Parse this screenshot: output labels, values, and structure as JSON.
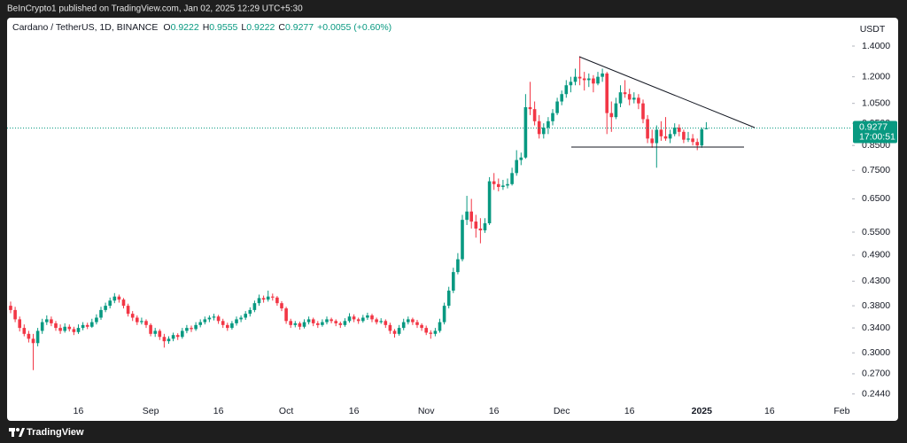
{
  "published": "BeInCrypto1 published on TradingView.com, Jan 02, 2025 12:29 UTC+5:30",
  "footer": "TradingView",
  "chart_data": {
    "type": "candlestick",
    "title": "Cardano / TetherUS, 1D, BINANCE",
    "ohlc_letters": [
      "O",
      "H",
      "L",
      "C"
    ],
    "change": "+0.0055 (+0.60%)",
    "y_unit": "USDT",
    "countdown": "17:00:51",
    "log_scale": true,
    "grid": false,
    "up_color": "#089981",
    "down_color": "#f23645",
    "ylim": [
      0.218,
      1.6
    ],
    "yticks": [
      {
        "value": 1.4,
        "label": "1.4000"
      },
      {
        "value": 1.2,
        "label": "1.2000"
      },
      {
        "value": 1.05,
        "label": "1.0500"
      },
      {
        "value": 0.95,
        "label": "0.9500"
      },
      {
        "value": 0.85,
        "label": "0.8500"
      },
      {
        "value": 0.75,
        "label": "0.7500"
      },
      {
        "value": 0.65,
        "label": "0.6500"
      },
      {
        "value": 0.55,
        "label": "0.5500"
      },
      {
        "value": 0.49,
        "label": "0.4900"
      },
      {
        "value": 0.43,
        "label": "0.4300"
      },
      {
        "value": 0.38,
        "label": "0.3800"
      },
      {
        "value": 0.34,
        "label": "0.3400"
      },
      {
        "value": 0.3,
        "label": "0.3000"
      },
      {
        "value": 0.27,
        "label": "0.2700"
      },
      {
        "value": 0.244,
        "label": "0.2440"
      }
    ],
    "categories": [
      null,
      null,
      null,
      null,
      null,
      null,
      null,
      null,
      null,
      null,
      null,
      null,
      null,
      null,
      null,
      "16",
      null,
      null,
      null,
      null,
      null,
      null,
      null,
      null,
      null,
      null,
      null,
      null,
      null,
      null,
      null,
      "Sep",
      null,
      null,
      null,
      null,
      null,
      null,
      null,
      null,
      null,
      null,
      null,
      null,
      null,
      null,
      "16",
      null,
      null,
      null,
      null,
      null,
      null,
      null,
      null,
      null,
      null,
      null,
      null,
      null,
      null,
      "Oct",
      null,
      null,
      null,
      null,
      null,
      null,
      null,
      null,
      null,
      null,
      null,
      null,
      null,
      null,
      "16",
      null,
      null,
      null,
      null,
      null,
      null,
      null,
      null,
      null,
      null,
      null,
      null,
      null,
      null,
      null,
      "Nov",
      null,
      null,
      null,
      null,
      null,
      null,
      null,
      null,
      null,
      null,
      null,
      null,
      null,
      null,
      "16",
      null,
      null,
      null,
      null,
      null,
      null,
      null,
      null,
      null,
      null,
      null,
      null,
      null,
      null,
      "Dec",
      null,
      null,
      null,
      null,
      null,
      null,
      null,
      null,
      null,
      null,
      null,
      null,
      null,
      null,
      "16",
      null,
      null,
      null,
      null,
      null,
      null,
      null,
      null,
      null,
      null,
      null,
      null,
      null,
      null,
      null,
      "2025",
      null,
      null,
      null,
      null,
      null,
      null,
      null,
      null,
      null,
      null,
      null,
      null,
      null,
      null,
      "16",
      null,
      null,
      null,
      null,
      null,
      null,
      null,
      null,
      null,
      null,
      null,
      null,
      null,
      null,
      null,
      "Feb"
    ],
    "ohlc": [
      [
        0.38,
        0.388,
        0.366,
        0.372
      ],
      [
        0.372,
        0.378,
        0.35,
        0.355
      ],
      [
        0.355,
        0.36,
        0.334,
        0.34
      ],
      [
        0.34,
        0.346,
        0.326,
        0.33
      ],
      [
        0.33,
        0.335,
        0.316,
        0.322
      ],
      [
        0.322,
        0.33,
        0.275,
        0.315
      ],
      [
        0.315,
        0.34,
        0.31,
        0.335
      ],
      [
        0.335,
        0.356,
        0.33,
        0.35
      ],
      [
        0.35,
        0.362,
        0.345,
        0.355
      ],
      [
        0.355,
        0.36,
        0.343,
        0.348
      ],
      [
        0.348,
        0.352,
        0.335,
        0.34
      ],
      [
        0.34,
        0.346,
        0.33,
        0.335
      ],
      [
        0.335,
        0.348,
        0.332,
        0.342
      ],
      [
        0.342,
        0.346,
        0.334,
        0.338
      ],
      [
        0.338,
        0.342,
        0.328,
        0.333
      ],
      [
        0.333,
        0.346,
        0.33,
        0.34
      ],
      [
        0.34,
        0.35,
        0.336,
        0.345
      ],
      [
        0.345,
        0.349,
        0.338,
        0.342
      ],
      [
        0.342,
        0.356,
        0.34,
        0.35
      ],
      [
        0.35,
        0.364,
        0.346,
        0.358
      ],
      [
        0.358,
        0.378,
        0.354,
        0.372
      ],
      [
        0.372,
        0.386,
        0.368,
        0.38
      ],
      [
        0.38,
        0.396,
        0.375,
        0.39
      ],
      [
        0.39,
        0.405,
        0.385,
        0.398
      ],
      [
        0.398,
        0.402,
        0.386,
        0.392
      ],
      [
        0.392,
        0.395,
        0.375,
        0.38
      ],
      [
        0.38,
        0.384,
        0.36,
        0.365
      ],
      [
        0.365,
        0.37,
        0.352,
        0.358
      ],
      [
        0.358,
        0.362,
        0.345,
        0.35
      ],
      [
        0.35,
        0.358,
        0.346,
        0.352
      ],
      [
        0.352,
        0.355,
        0.34,
        0.345
      ],
      [
        0.345,
        0.348,
        0.326,
        0.33
      ],
      [
        0.33,
        0.34,
        0.325,
        0.335
      ],
      [
        0.335,
        0.338,
        0.32,
        0.325
      ],
      [
        0.325,
        0.33,
        0.308,
        0.318
      ],
      [
        0.318,
        0.326,
        0.314,
        0.322
      ],
      [
        0.322,
        0.332,
        0.318,
        0.328
      ],
      [
        0.328,
        0.331,
        0.32,
        0.325
      ],
      [
        0.325,
        0.34,
        0.322,
        0.335
      ],
      [
        0.335,
        0.345,
        0.331,
        0.34
      ],
      [
        0.34,
        0.344,
        0.333,
        0.338
      ],
      [
        0.338,
        0.35,
        0.335,
        0.345
      ],
      [
        0.345,
        0.355,
        0.341,
        0.35
      ],
      [
        0.35,
        0.36,
        0.346,
        0.355
      ],
      [
        0.355,
        0.362,
        0.35,
        0.358
      ],
      [
        0.358,
        0.365,
        0.353,
        0.36
      ],
      [
        0.36,
        0.363,
        0.347,
        0.352
      ],
      [
        0.352,
        0.356,
        0.34,
        0.345
      ],
      [
        0.345,
        0.349,
        0.335,
        0.34
      ],
      [
        0.34,
        0.352,
        0.337,
        0.348
      ],
      [
        0.348,
        0.36,
        0.344,
        0.355
      ],
      [
        0.355,
        0.362,
        0.35,
        0.358
      ],
      [
        0.358,
        0.37,
        0.354,
        0.365
      ],
      [
        0.365,
        0.377,
        0.36,
        0.372
      ],
      [
        0.372,
        0.39,
        0.368,
        0.385
      ],
      [
        0.385,
        0.402,
        0.38,
        0.395
      ],
      [
        0.395,
        0.4,
        0.386,
        0.392
      ],
      [
        0.392,
        0.41,
        0.388,
        0.398
      ],
      [
        0.398,
        0.404,
        0.39,
        0.396
      ],
      [
        0.396,
        0.399,
        0.38,
        0.385
      ],
      [
        0.385,
        0.389,
        0.37,
        0.375
      ],
      [
        0.375,
        0.378,
        0.347,
        0.352
      ],
      [
        0.352,
        0.356,
        0.34,
        0.345
      ],
      [
        0.345,
        0.352,
        0.341,
        0.348
      ],
      [
        0.348,
        0.351,
        0.337,
        0.342
      ],
      [
        0.342,
        0.355,
        0.339,
        0.35
      ],
      [
        0.35,
        0.36,
        0.346,
        0.355
      ],
      [
        0.355,
        0.358,
        0.343,
        0.348
      ],
      [
        0.348,
        0.352,
        0.34,
        0.345
      ],
      [
        0.345,
        0.355,
        0.342,
        0.35
      ],
      [
        0.35,
        0.36,
        0.346,
        0.355
      ],
      [
        0.355,
        0.358,
        0.348,
        0.352
      ],
      [
        0.352,
        0.355,
        0.343,
        0.348
      ],
      [
        0.348,
        0.351,
        0.34,
        0.345
      ],
      [
        0.345,
        0.357,
        0.342,
        0.352
      ],
      [
        0.352,
        0.366,
        0.349,
        0.36
      ],
      [
        0.36,
        0.364,
        0.35,
        0.355
      ],
      [
        0.355,
        0.358,
        0.347,
        0.352
      ],
      [
        0.352,
        0.363,
        0.349,
        0.358
      ],
      [
        0.358,
        0.367,
        0.354,
        0.362
      ],
      [
        0.362,
        0.365,
        0.35,
        0.355
      ],
      [
        0.355,
        0.358,
        0.346,
        0.35
      ],
      [
        0.35,
        0.357,
        0.347,
        0.352
      ],
      [
        0.352,
        0.355,
        0.34,
        0.345
      ],
      [
        0.345,
        0.349,
        0.33,
        0.335
      ],
      [
        0.335,
        0.338,
        0.324,
        0.33
      ],
      [
        0.33,
        0.345,
        0.327,
        0.34
      ],
      [
        0.34,
        0.356,
        0.336,
        0.35
      ],
      [
        0.35,
        0.36,
        0.346,
        0.355
      ],
      [
        0.355,
        0.358,
        0.345,
        0.35
      ],
      [
        0.35,
        0.354,
        0.34,
        0.345
      ],
      [
        0.345,
        0.348,
        0.335,
        0.34
      ],
      [
        0.34,
        0.344,
        0.328,
        0.332
      ],
      [
        0.332,
        0.336,
        0.322,
        0.33
      ],
      [
        0.33,
        0.34,
        0.326,
        0.335
      ],
      [
        0.335,
        0.356,
        0.332,
        0.35
      ],
      [
        0.35,
        0.386,
        0.346,
        0.38
      ],
      [
        0.38,
        0.418,
        0.375,
        0.41
      ],
      [
        0.41,
        0.46,
        0.405,
        0.45
      ],
      [
        0.45,
        0.495,
        0.445,
        0.48
      ],
      [
        0.48,
        0.6,
        0.475,
        0.585
      ],
      [
        0.585,
        0.66,
        0.57,
        0.61
      ],
      [
        0.61,
        0.65,
        0.56,
        0.58
      ],
      [
        0.58,
        0.6,
        0.535,
        0.56
      ],
      [
        0.56,
        0.59,
        0.52,
        0.555
      ],
      [
        0.555,
        0.59,
        0.548,
        0.575
      ],
      [
        0.575,
        0.725,
        0.57,
        0.71
      ],
      [
        0.71,
        0.74,
        0.68,
        0.7
      ],
      [
        0.7,
        0.72,
        0.675,
        0.69
      ],
      [
        0.69,
        0.715,
        0.68,
        0.695
      ],
      [
        0.695,
        0.72,
        0.685,
        0.7
      ],
      [
        0.7,
        0.76,
        0.695,
        0.74
      ],
      [
        0.74,
        0.83,
        0.73,
        0.79
      ],
      [
        0.79,
        0.82,
        0.77,
        0.8
      ],
      [
        0.8,
        1.1,
        0.795,
        1.03
      ],
      [
        1.03,
        1.17,
        0.99,
        1.02
      ],
      [
        1.02,
        1.06,
        0.94,
        0.96
      ],
      [
        0.96,
        0.99,
        0.88,
        0.9
      ],
      [
        0.9,
        0.95,
        0.88,
        0.93
      ],
      [
        0.93,
        0.98,
        0.9,
        0.96
      ],
      [
        0.96,
        1.02,
        0.94,
        1.0
      ],
      [
        1.0,
        1.08,
        0.99,
        1.06
      ],
      [
        1.06,
        1.12,
        1.04,
        1.1
      ],
      [
        1.1,
        1.18,
        1.08,
        1.15
      ],
      [
        1.15,
        1.2,
        1.11,
        1.17
      ],
      [
        1.17,
        1.25,
        1.15,
        1.2
      ],
      [
        1.2,
        1.33,
        1.15,
        1.19
      ],
      [
        1.19,
        1.23,
        1.12,
        1.18
      ],
      [
        1.18,
        1.22,
        1.14,
        1.19
      ],
      [
        1.19,
        1.21,
        1.11,
        1.16
      ],
      [
        1.16,
        1.23,
        1.15,
        1.2
      ],
      [
        1.2,
        1.25,
        1.17,
        1.22
      ],
      [
        1.22,
        1.23,
        0.9,
        1.0
      ],
      [
        1.0,
        1.06,
        0.91,
        0.98
      ],
      [
        0.98,
        1.08,
        0.97,
        1.05
      ],
      [
        1.05,
        1.15,
        1.03,
        1.11
      ],
      [
        1.11,
        1.18,
        1.08,
        1.1
      ],
      [
        1.1,
        1.13,
        1.04,
        1.07
      ],
      [
        1.07,
        1.11,
        1.05,
        1.08
      ],
      [
        1.08,
        1.1,
        1.02,
        1.05
      ],
      [
        1.05,
        1.07,
        0.95,
        0.97
      ],
      [
        0.97,
        0.99,
        0.86,
        0.88
      ],
      [
        0.88,
        0.92,
        0.84,
        0.86
      ],
      [
        0.86,
        0.94,
        0.76,
        0.92
      ],
      [
        0.92,
        0.96,
        0.87,
        0.89
      ],
      [
        0.89,
        0.98,
        0.87,
        0.88
      ],
      [
        0.88,
        0.92,
        0.86,
        0.9
      ],
      [
        0.9,
        0.95,
        0.89,
        0.93
      ],
      [
        0.93,
        0.945,
        0.89,
        0.91
      ],
      [
        0.91,
        0.92,
        0.86,
        0.875
      ],
      [
        0.875,
        0.91,
        0.865,
        0.88
      ],
      [
        0.88,
        0.9,
        0.85,
        0.865
      ],
      [
        0.865,
        0.88,
        0.83,
        0.85
      ],
      [
        0.85,
        0.93,
        0.84,
        0.922
      ],
      [
        0.9222,
        0.9555,
        0.9222,
        0.9277
      ],
      null,
      null,
      null,
      null,
      null,
      null,
      null,
      null,
      null,
      null,
      null,
      null,
      null,
      null,
      null,
      null,
      null,
      null,
      null,
      null,
      null,
      null,
      null,
      null,
      null,
      null,
      null,
      null,
      null,
      null
    ]
  }
}
